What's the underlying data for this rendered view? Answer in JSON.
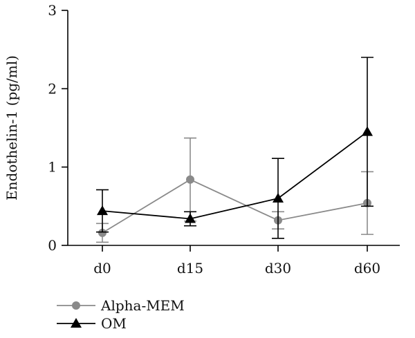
{
  "chart_data": {
    "type": "line",
    "title": "",
    "xlabel": "",
    "ylabel": "Endothelin-1 (pg/ml)",
    "ylim": [
      0,
      3
    ],
    "yticks": [
      "0",
      "1",
      "2",
      "3"
    ],
    "categories": [
      "d0",
      "d15",
      "d30",
      "d60"
    ],
    "grid": false,
    "legend_position": "bottom-left",
    "series": [
      {
        "name": "Alpha-MEM",
        "marker": "circle",
        "color": "#8a8a8a",
        "values": [
          0.16,
          0.84,
          0.32,
          0.54
        ],
        "error": [
          0.12,
          0.53,
          0.11,
          0.4
        ]
      },
      {
        "name": "OM",
        "marker": "triangle",
        "color": "#000000",
        "values": [
          0.44,
          0.34,
          0.6,
          1.45
        ],
        "error": [
          0.27,
          0.09,
          0.51,
          0.95
        ]
      }
    ]
  }
}
